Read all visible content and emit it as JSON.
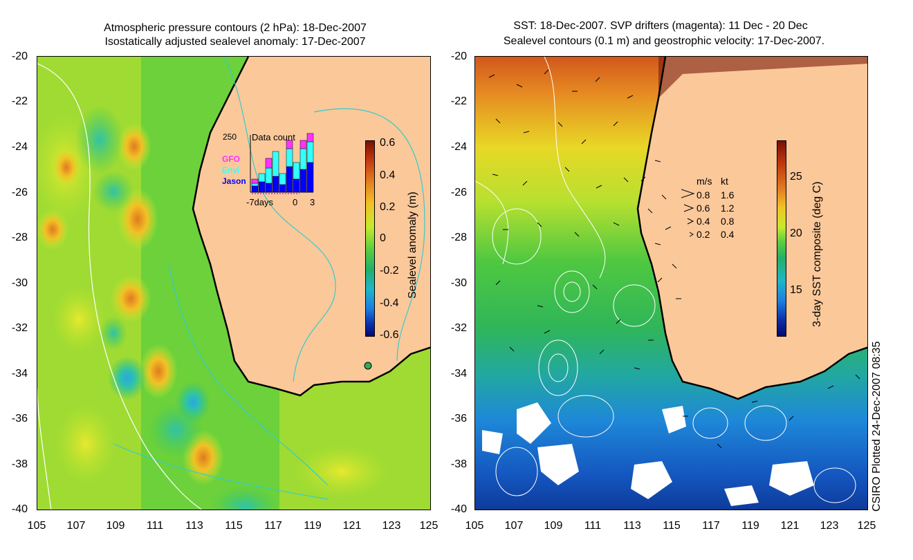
{
  "left_panel": {
    "title_line1": "Atmospheric pressure contours (2 hPa): 18-Dec-2007",
    "title_line2": "Isostatically adjusted sealevel anomaly: 17-Dec-2007",
    "y_ticks": [
      "-20",
      "-22",
      "-24",
      "-26",
      "-28",
      "-30",
      "-32",
      "-34",
      "-36",
      "-38",
      "-40"
    ],
    "x_ticks": [
      "105",
      "107",
      "109",
      "111",
      "113",
      "115",
      "117",
      "119",
      "121",
      "123",
      "125"
    ],
    "colorbar": {
      "label": "Sealevel anomaly (m)",
      "ticks": [
        "0.6",
        "0.4",
        "0.2",
        "0",
        "-0.2",
        "-0.4",
        "-0.6"
      ]
    },
    "inset": {
      "top_value": "250",
      "title": "Data count",
      "legend": [
        {
          "name": "GFO",
          "color": "#ff33ff"
        },
        {
          "name": "Envi",
          "color": "#33ffff"
        },
        {
          "name": "Jason",
          "color": "#0000ff"
        }
      ],
      "x_labels": [
        "-7days",
        "0",
        "3"
      ]
    }
  },
  "right_panel": {
    "title_line1": "SST: 18-Dec-2007. SVP drifters (magenta): 11 Dec - 20 Dec",
    "title_line2": "Sealevel contours (0.1 m) and geostrophic velocity: 17-Dec-2007.",
    "y_ticks": [
      "-20",
      "-22",
      "-24",
      "-26",
      "-28",
      "-30",
      "-32",
      "-34",
      "-36",
      "-38",
      "-40"
    ],
    "x_ticks": [
      "105",
      "107",
      "109",
      "111",
      "113",
      "115",
      "117",
      "119",
      "121",
      "123",
      "125"
    ],
    "colorbar": {
      "label": "3-day SST composite (deg C)",
      "ticks": [
        "25",
        "20",
        "15"
      ]
    },
    "velocity_legend": {
      "header_ms": "m/s",
      "header_kt": "kt",
      "rows": [
        {
          "ms": "0.8",
          "kt": "1.6"
        },
        {
          "ms": "0.6",
          "kt": "1.2"
        },
        {
          "ms": "0.4",
          "kt": "0.8"
        },
        {
          "ms": "0.2",
          "kt": "0.4"
        }
      ]
    }
  },
  "credit": "CSIRO Plotted 24-Dec-2007 08:35",
  "colors": {
    "land": "#fbc89a",
    "coast": "#000000",
    "contour_white": "#ffffff",
    "contour_cyan": "#33cccc"
  }
}
